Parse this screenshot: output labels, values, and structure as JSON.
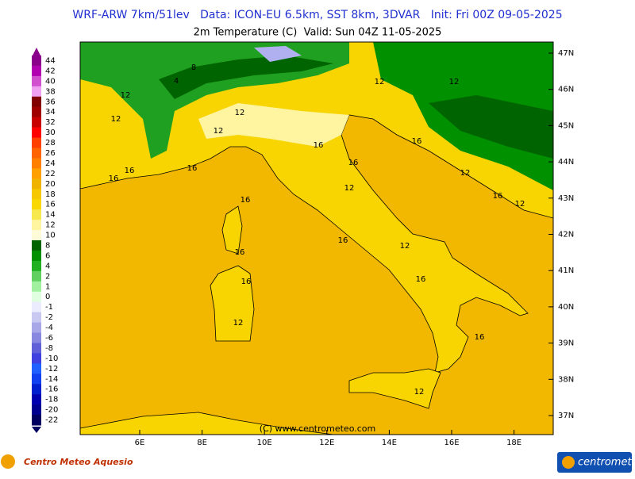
{
  "header": {
    "line1": "WRF-ARW 7km/51lev   Data: ICON-EU 6.5km, SST 8km, 3DVAR   Init: Fri 00Z 09-05-2025",
    "line2": "2m Temperature (C)  Valid: Sun 04Z 11-05-2025"
  },
  "colorbar": [
    {
      "label": "44",
      "color": "#8b008b"
    },
    {
      "label": "42",
      "color": "#b000b0"
    },
    {
      "label": "40",
      "color": "#d050d0"
    },
    {
      "label": "38",
      "color": "#f0a0f0"
    },
    {
      "label": "36",
      "color": "#800000"
    },
    {
      "label": "34",
      "color": "#a00000"
    },
    {
      "label": "32",
      "color": "#c80000"
    },
    {
      "label": "30",
      "color": "#ff0000"
    },
    {
      "label": "28",
      "color": "#ff4000"
    },
    {
      "label": "26",
      "color": "#ff6400"
    },
    {
      "label": "24",
      "color": "#ff8000"
    },
    {
      "label": "22",
      "color": "#ffa000"
    },
    {
      "label": "20",
      "color": "#f0b400"
    },
    {
      "label": "18",
      "color": "#f5c800"
    },
    {
      "label": "16",
      "color": "#f8d800"
    },
    {
      "label": "14",
      "color": "#f8e850"
    },
    {
      "label": "12",
      "color": "#fff5a0"
    },
    {
      "label": "10",
      "color": "#fffbd8"
    },
    {
      "label": "8",
      "color": "#006400"
    },
    {
      "label": "6",
      "color": "#009000"
    },
    {
      "label": "4",
      "color": "#20b020"
    },
    {
      "label": "2",
      "color": "#60d060"
    },
    {
      "label": "1",
      "color": "#a0f0a0"
    },
    {
      "label": "0",
      "color": "#e0ffe0"
    },
    {
      "label": "-1",
      "color": "#ececff"
    },
    {
      "label": "-2",
      "color": "#c8c8f0"
    },
    {
      "label": "-4",
      "color": "#a8a8e8"
    },
    {
      "label": "-6",
      "color": "#8888e0"
    },
    {
      "label": "-8",
      "color": "#6060d8"
    },
    {
      "label": "-10",
      "color": "#4040e0"
    },
    {
      "label": "-12",
      "color": "#2060ff"
    },
    {
      "label": "-14",
      "color": "#1040f0"
    },
    {
      "label": "-16",
      "color": "#0020d0"
    },
    {
      "label": "-18",
      "color": "#0000b0"
    },
    {
      "label": "-20",
      "color": "#000090"
    },
    {
      "label": "-22",
      "color": "#000060"
    }
  ],
  "map": {
    "lon_ticks": [
      "6E",
      "8E",
      "10E",
      "12E",
      "14E",
      "16E",
      "18E"
    ],
    "lat_ticks": [
      "47N",
      "46N",
      "45N",
      "44N",
      "43N",
      "42N",
      "41N",
      "40N",
      "39N",
      "38N",
      "37N"
    ],
    "labels": [
      "12",
      "12",
      "16",
      "16",
      "12",
      "16",
      "16",
      "12",
      "12",
      "16",
      "12",
      "16",
      "12",
      "16",
      "12",
      "16",
      "16",
      "16",
      "16",
      "12",
      "16",
      "8",
      "4",
      "12",
      "12",
      "16",
      "12"
    ],
    "copyright": "(C) www.centrometeo.com"
  },
  "footer": {
    "left_logo": "Centro Meteo Aquesio",
    "right_logo": "centrometeo"
  }
}
